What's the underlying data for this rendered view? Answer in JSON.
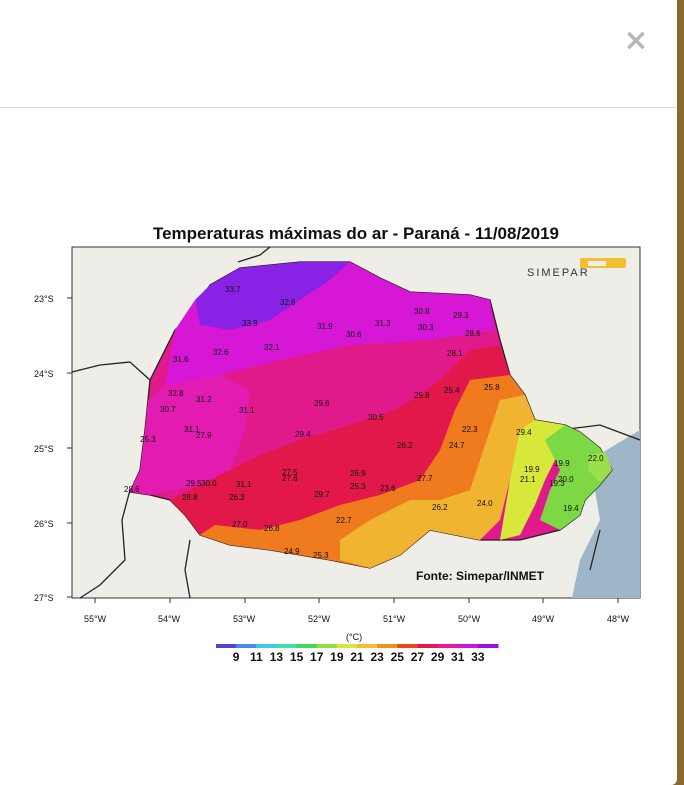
{
  "modal": {
    "close_label": "×"
  },
  "map": {
    "title": "Temperaturas máximas do ar - Paraná - 11/08/2019",
    "brand": "SIMEPAR",
    "source": "Fonte: Simepar/INMET",
    "lat_ticks": [
      "23°S",
      "24°S",
      "25°S",
      "26°S",
      "27°S"
    ],
    "lon_ticks": [
      "55°W",
      "54°W",
      "53°W",
      "52°W",
      "51°W",
      "50°W",
      "49°W",
      "48°W"
    ],
    "legend_unit": "(°C)",
    "legend_values": [
      "9",
      "11",
      "13",
      "15",
      "17",
      "19",
      "21",
      "23",
      "25",
      "27",
      "29",
      "31",
      "33"
    ],
    "legend_colors": [
      "#5a3fd8",
      "#4a8bea",
      "#3fc9e6",
      "#3fe0b0",
      "#45d860",
      "#8fe040",
      "#d8e83a",
      "#f0c030",
      "#f0901e",
      "#e84a1e",
      "#e01a50",
      "#e81a9a",
      "#c818d8",
      "#9a10e0"
    ],
    "stations": [
      "33.7",
      "32.6",
      "33.9",
      "31.9",
      "31.3",
      "30.8",
      "29.3",
      "30.3",
      "30.6",
      "28.6",
      "31.6",
      "32.6",
      "32.1",
      "28.1",
      "32.8",
      "31.2",
      "29.8",
      "25.4",
      "25.8",
      "30.7",
      "31.1",
      "29.6",
      "30.5",
      "31.1",
      "27.9",
      "29.4",
      "25.3",
      "22.3",
      "29.4",
      "26.2",
      "24.7",
      "19.9",
      "19.9",
      "22.0",
      "28.6",
      "27.5",
      "27.6",
      "26.9",
      "21.1",
      "29.5",
      "30.0",
      "31.1",
      "25.3",
      "23.6",
      "27.7",
      "19.3",
      "20.0",
      "28.8",
      "26.3",
      "29.7",
      "24.0",
      "26.2",
      "19.4",
      "22.7",
      "27.0",
      "26.8",
      "24.9",
      "25.3"
    ]
  }
}
